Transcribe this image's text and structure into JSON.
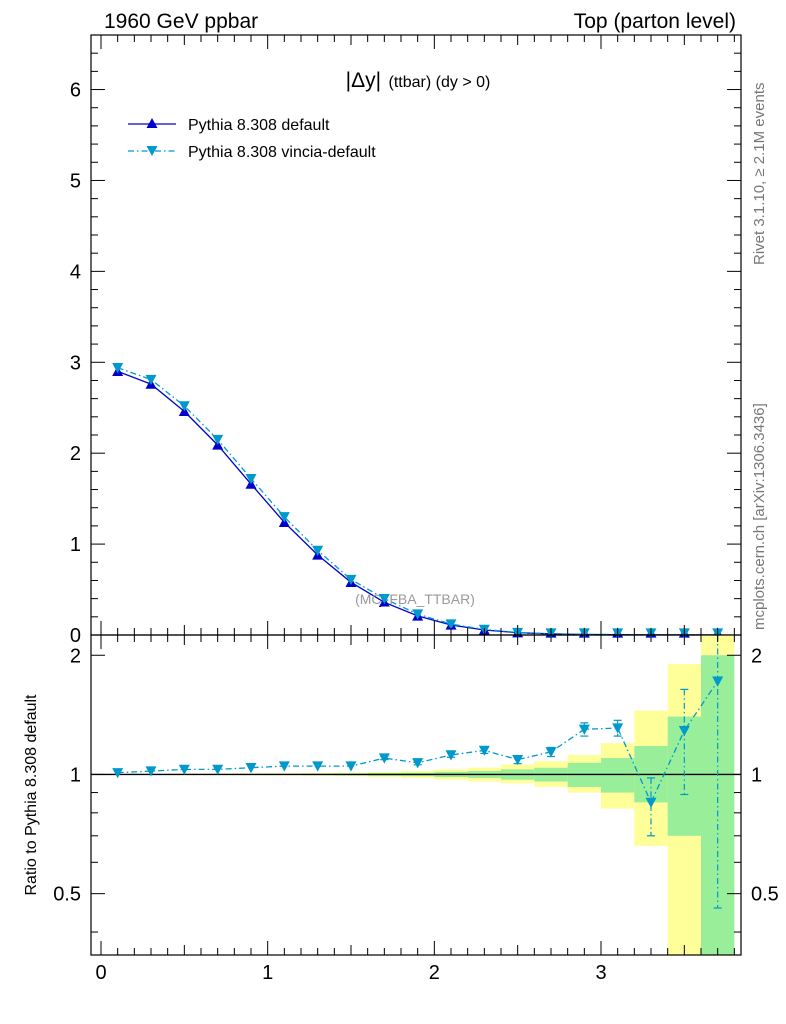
{
  "header": {
    "left": "1960 GeV ppbar",
    "right": "Top (parton level)"
  },
  "side_text": {
    "rivet": "Rivet 3.1.10, ≥ 2.1M events",
    "mcplots": "mcplots.cern.ch [arXiv:1306.3436]"
  },
  "main_panel": {
    "title_main": "|Δy|",
    "title_sub": "(ttbar) (dy > 0)",
    "watermark": "(MC_FBA_TTBAR)"
  },
  "ratio_panel": {
    "ylabel": "Ratio to Pythia 8.308 default"
  },
  "colors": {
    "default": "#0000cc",
    "vincia": "#0099cc",
    "band_green": "#99ee99",
    "band_yellow": "#ffff99"
  },
  "chart_data": [
    {
      "type": "line",
      "panel": "main",
      "ylim": [
        0,
        6.6
      ],
      "xlim": [
        -0.06,
        3.84
      ],
      "y_ticks": [
        "0",
        "1",
        "2",
        "3",
        "4",
        "5",
        "6"
      ],
      "legend_position": "top-left",
      "x": [
        0.1,
        0.3,
        0.5,
        0.7,
        0.9,
        1.1,
        1.3,
        1.5,
        1.7,
        1.9,
        2.1,
        2.3,
        2.5,
        2.7,
        2.9,
        3.1,
        3.3,
        3.5,
        3.7
      ],
      "series": [
        {
          "name": "Pythia 8.308 default",
          "marker": "triangle-up",
          "line": "solid",
          "values": [
            2.9,
            2.76,
            2.46,
            2.09,
            1.66,
            1.24,
            0.88,
            0.58,
            0.36,
            0.21,
            0.11,
            0.055,
            0.025,
            0.012,
            0.006,
            0.003,
            0.0015,
            0.001,
            0.0005
          ]
        },
        {
          "name": "Pythia 8.308 vincia-default",
          "marker": "triangle-down",
          "line": "dash-dot",
          "values": [
            2.94,
            2.81,
            2.52,
            2.15,
            1.72,
            1.3,
            0.93,
            0.61,
            0.4,
            0.23,
            0.12,
            0.062,
            0.027,
            0.014,
            0.008,
            0.004,
            0.0013,
            0.0013,
            0.0009
          ]
        }
      ]
    },
    {
      "type": "line",
      "panel": "ratio",
      "ylabel": "Ratio to Pythia 8.308 default",
      "ylim": [
        0.35,
        2.25
      ],
      "xlim": [
        -0.06,
        3.84
      ],
      "x_ticks": [
        "0",
        "1",
        "2",
        "3"
      ],
      "y_ticks": [
        "0.5",
        "1",
        "2"
      ],
      "x": [
        0.1,
        0.3,
        0.5,
        0.7,
        0.9,
        1.1,
        1.3,
        1.5,
        1.7,
        1.9,
        2.1,
        2.3,
        2.5,
        2.7,
        2.9,
        3.1,
        3.3,
        3.5,
        3.7
      ],
      "series": [
        {
          "name": "Pythia 8.308 vincia-default",
          "values": [
            1.01,
            1.02,
            1.03,
            1.03,
            1.04,
            1.05,
            1.05,
            1.05,
            1.1,
            1.07,
            1.12,
            1.15,
            1.09,
            1.14,
            1.3,
            1.31,
            0.85,
            1.29,
            1.72
          ],
          "err_low": [
            0.005,
            0.005,
            0.005,
            0.005,
            0.005,
            0.005,
            0.006,
            0.008,
            0.01,
            0.012,
            0.015,
            0.02,
            0.025,
            0.03,
            0.05,
            0.06,
            0.15,
            0.4,
            1.26
          ],
          "err_high": [
            0.005,
            0.005,
            0.005,
            0.005,
            0.005,
            0.005,
            0.006,
            0.008,
            0.01,
            0.012,
            0.015,
            0.02,
            0.025,
            0.03,
            0.05,
            0.06,
            0.13,
            0.35,
            0.53
          ]
        }
      ],
      "bands": {
        "edges": [
          0.0,
          0.2,
          0.4,
          0.6,
          0.8,
          1.0,
          1.2,
          1.4,
          1.6,
          1.8,
          2.0,
          2.2,
          2.4,
          2.6,
          2.8,
          3.0,
          3.2,
          3.4,
          3.6,
          3.8
        ],
        "green_low": [
          0.998,
          0.998,
          0.998,
          0.998,
          0.997,
          0.997,
          0.996,
          0.994,
          0.992,
          0.99,
          0.985,
          0.98,
          0.97,
          0.96,
          0.93,
          0.9,
          0.85,
          0.7,
          0.3
        ],
        "green_high": [
          1.002,
          1.002,
          1.002,
          1.002,
          1.003,
          1.003,
          1.004,
          1.006,
          1.008,
          1.01,
          1.015,
          1.02,
          1.03,
          1.04,
          1.07,
          1.1,
          1.18,
          1.4,
          2.0
        ],
        "yellow_low": [
          0.997,
          0.997,
          0.996,
          0.996,
          0.995,
          0.994,
          0.992,
          0.99,
          0.985,
          0.98,
          0.97,
          0.96,
          0.95,
          0.93,
          0.9,
          0.82,
          0.66,
          0.3,
          0.3
        ],
        "yellow_high": [
          1.003,
          1.003,
          1.004,
          1.004,
          1.005,
          1.006,
          1.008,
          1.01,
          1.015,
          1.02,
          1.03,
          1.04,
          1.06,
          1.08,
          1.12,
          1.2,
          1.45,
          1.9,
          2.3
        ]
      }
    }
  ]
}
